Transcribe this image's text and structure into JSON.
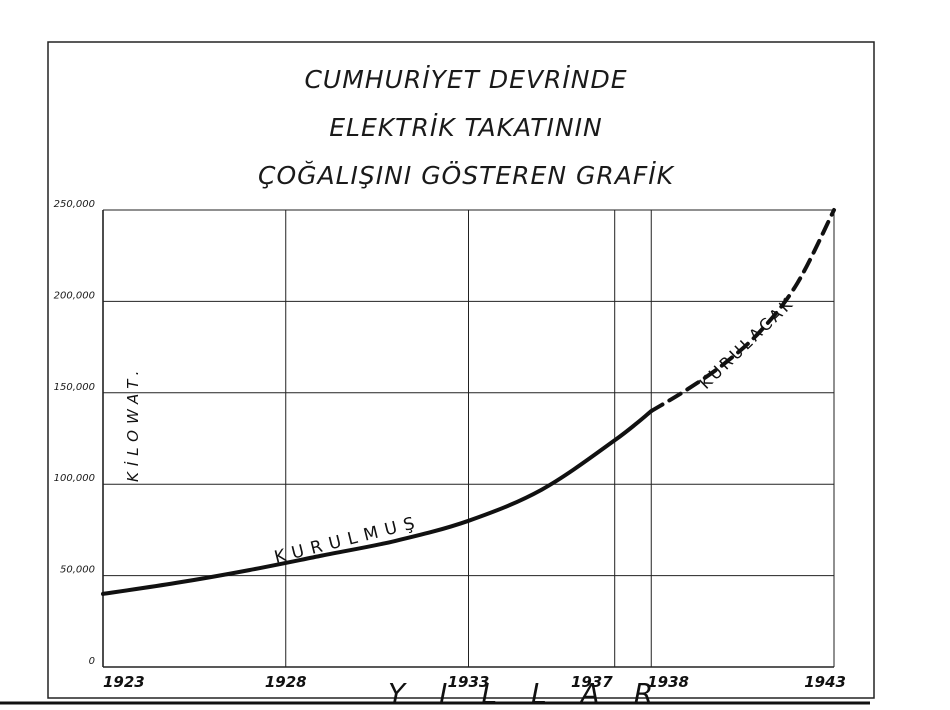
{
  "chart_data": {
    "type": "line",
    "title_lines": [
      "CUMHURİYET DEVRİNDE",
      "ELEKTRİK TAKATININ",
      "ÇOĞALIŞINI GÖSTEREN GRAFİK"
    ],
    "xlabel": "YILLAR",
    "ylabel": "KİLOWAT.",
    "x_ticks": [
      "1923",
      "1928",
      "1933",
      "1937",
      "1938",
      "1943"
    ],
    "y_ticks": [
      "0",
      "50,000",
      "100,000",
      "150,000",
      "200,000",
      "250,000"
    ],
    "xlim": [
      1923,
      1943
    ],
    "ylim": [
      0,
      250000
    ],
    "grid": true,
    "series": [
      {
        "name": "KURULMUŞ",
        "style": "solid",
        "x": [
          1923,
          1925,
          1927,
          1929,
          1931,
          1933,
          1935,
          1937,
          1938
        ],
        "values": [
          40000,
          46000,
          53000,
          61000,
          69000,
          80000,
          97000,
          124000,
          140000
        ]
      },
      {
        "name": "KURULACAK",
        "style": "dashed",
        "x": [
          1938,
          1939,
          1940,
          1941,
          1942,
          1943
        ],
        "values": [
          140000,
          152000,
          166000,
          184000,
          210000,
          250000
        ]
      }
    ],
    "colors": {
      "ink": "#111111",
      "grid": "#222222"
    }
  }
}
